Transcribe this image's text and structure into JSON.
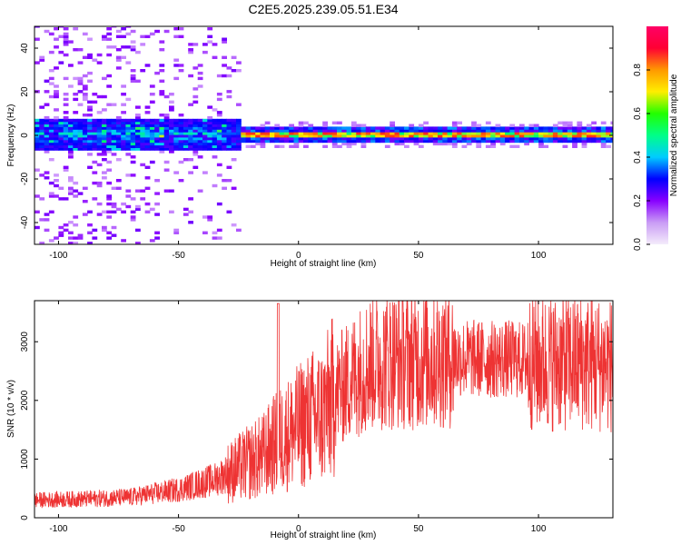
{
  "title": "C2E5.2025.239.05.51.E34",
  "chart_data": [
    {
      "type": "heatmap",
      "xlabel": "Height of straight line (km)",
      "ylabel": "Frequency (Hz)",
      "xlim": [
        -110,
        131
      ],
      "ylim": [
        -50,
        50
      ],
      "xticks": [
        -100,
        -50,
        0,
        50,
        100
      ],
      "yticks": [
        -40,
        -20,
        0,
        20,
        40
      ],
      "colorbar": {
        "label": "Normalized spectral amplitude",
        "range": [
          0.0,
          1.0
        ],
        "ticks": [
          0.0,
          0.2,
          0.4,
          0.6,
          0.8
        ],
        "tick_labels": [
          "0.0",
          "0.2",
          "0.4",
          "0.6",
          "0.8"
        ],
        "colormap": [
          "#f4ecfb",
          "#8800ff",
          "#0000ff",
          "#00ccff",
          "#00ff66",
          "#ffee00",
          "#ff6600",
          "#ff0033"
        ]
      },
      "band": {
        "description_x_segments": [
          {
            "x_range": [
              -110,
              -25
            ],
            "center_hz": 0,
            "halfwidth_hz": 6,
            "amplitude": 0.35,
            "noise": 0.25
          },
          {
            "x_range": [
              -25,
              130
            ],
            "center_hz": 0,
            "halfwidth_hz": 2,
            "amplitude": 0.75,
            "noise": 0.15
          }
        ]
      }
    },
    {
      "type": "line",
      "xlabel": "Height of straight line (km)",
      "ylabel": "SNR (10 * v/v)",
      "xlim": [
        -110,
        131
      ],
      "ylim": [
        0,
        3700
      ],
      "xticks": [
        -100,
        -50,
        0,
        50,
        100
      ],
      "yticks": [
        0,
        1000,
        2000,
        3000
      ],
      "color": "#ee3333",
      "envelope": {
        "x": [
          -110,
          -90,
          -70,
          -50,
          -35,
          -25,
          -15,
          -10,
          -5,
          0,
          5,
          10,
          15,
          20,
          25,
          30,
          40,
          50,
          60,
          70,
          80,
          90,
          100,
          110,
          120,
          130
        ],
        "y": [
          300,
          320,
          350,
          480,
          650,
          850,
          1050,
          1250,
          1400,
          1550,
          1700,
          1750,
          2100,
          2300,
          2500,
          2650,
          2700,
          2700,
          2720,
          2720,
          2700,
          2700,
          2650,
          2650,
          2650,
          2600
        ]
      },
      "spike": {
        "x": -8.5,
        "y": 3650
      }
    }
  ]
}
